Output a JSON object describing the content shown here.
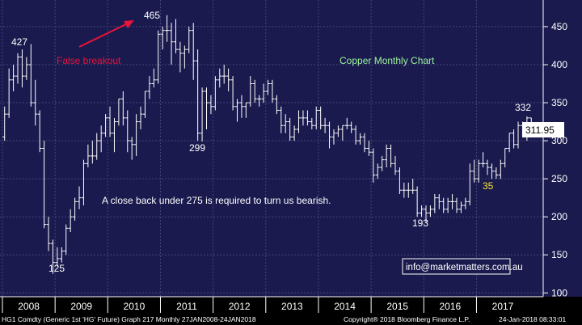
{
  "chart_data": {
    "type": "ohlc",
    "title": "Copper Monthly Chart",
    "xlabel": "",
    "ylabel": "",
    "ylim": [
      95,
      485
    ],
    "y_ticks": [
      100,
      150,
      200,
      250,
      300,
      350,
      400,
      450
    ],
    "x_ticks": [
      "2008",
      "2009",
      "2010",
      "2011",
      "2012",
      "2013",
      "2014",
      "2015",
      "2016",
      "2017"
    ],
    "grid": true,
    "last_price": "311.95",
    "series": [
      {
        "bars": [
          {
            "x": "2008-01",
            "o": 305,
            "h": 345,
            "l": 300,
            "c": 335
          },
          {
            "x": "2008-02",
            "o": 335,
            "h": 395,
            "l": 330,
            "c": 380
          },
          {
            "x": "2008-03",
            "o": 380,
            "h": 400,
            "l": 365,
            "c": 385
          },
          {
            "x": "2008-04",
            "o": 385,
            "h": 415,
            "l": 375,
            "c": 410
          },
          {
            "x": "2008-05",
            "o": 410,
            "h": 420,
            "l": 370,
            "c": 385
          },
          {
            "x": "2008-06",
            "o": 385,
            "h": 410,
            "l": 380,
            "c": 400
          },
          {
            "x": "2008-07",
            "o": 400,
            "h": 427,
            "l": 345,
            "c": 350
          },
          {
            "x": "2008-08",
            "o": 350,
            "h": 380,
            "l": 320,
            "c": 335
          },
          {
            "x": "2008-09",
            "o": 335,
            "h": 340,
            "l": 285,
            "c": 290
          },
          {
            "x": "2008-10",
            "o": 290,
            "h": 300,
            "l": 185,
            "c": 190
          },
          {
            "x": "2008-11",
            "o": 190,
            "h": 200,
            "l": 155,
            "c": 165
          },
          {
            "x": "2008-12",
            "o": 165,
            "h": 170,
            "l": 125,
            "c": 140
          },
          {
            "x": "2009-01",
            "o": 140,
            "h": 160,
            "l": 135,
            "c": 145
          },
          {
            "x": "2009-02",
            "o": 145,
            "h": 160,
            "l": 140,
            "c": 155
          },
          {
            "x": "2009-03",
            "o": 155,
            "h": 190,
            "l": 150,
            "c": 185
          },
          {
            "x": "2009-04",
            "o": 185,
            "h": 210,
            "l": 180,
            "c": 200
          },
          {
            "x": "2009-05",
            "o": 200,
            "h": 225,
            "l": 195,
            "c": 220
          },
          {
            "x": "2009-06",
            "o": 220,
            "h": 240,
            "l": 210,
            "c": 225
          },
          {
            "x": "2009-07",
            "o": 225,
            "h": 275,
            "l": 215,
            "c": 270
          },
          {
            "x": "2009-08",
            "o": 270,
            "h": 295,
            "l": 265,
            "c": 280
          },
          {
            "x": "2009-09",
            "o": 280,
            "h": 300,
            "l": 270,
            "c": 280
          },
          {
            "x": "2009-10",
            "o": 280,
            "h": 310,
            "l": 275,
            "c": 300
          },
          {
            "x": "2009-11",
            "o": 300,
            "h": 320,
            "l": 285,
            "c": 310
          },
          {
            "x": "2009-12",
            "o": 310,
            "h": 335,
            "l": 305,
            "c": 330
          },
          {
            "x": "2010-01",
            "o": 330,
            "h": 345,
            "l": 305,
            "c": 310
          },
          {
            "x": "2010-02",
            "o": 310,
            "h": 330,
            "l": 285,
            "c": 325
          },
          {
            "x": "2010-03",
            "o": 325,
            "h": 355,
            "l": 320,
            "c": 355
          },
          {
            "x": "2010-04",
            "o": 355,
            "h": 365,
            "l": 320,
            "c": 330
          },
          {
            "x": "2010-05",
            "o": 330,
            "h": 340,
            "l": 285,
            "c": 300
          },
          {
            "x": "2010-06",
            "o": 300,
            "h": 305,
            "l": 275,
            "c": 295
          },
          {
            "x": "2010-07",
            "o": 295,
            "h": 335,
            "l": 280,
            "c": 325
          },
          {
            "x": "2010-08",
            "o": 325,
            "h": 345,
            "l": 315,
            "c": 335
          },
          {
            "x": "2010-09",
            "o": 335,
            "h": 365,
            "l": 330,
            "c": 365
          },
          {
            "x": "2010-10",
            "o": 365,
            "h": 385,
            "l": 355,
            "c": 375
          },
          {
            "x": "2010-11",
            "o": 375,
            "h": 395,
            "l": 370,
            "c": 380
          },
          {
            "x": "2010-12",
            "o": 380,
            "h": 445,
            "l": 375,
            "c": 440
          },
          {
            "x": "2011-01",
            "o": 440,
            "h": 450,
            "l": 420,
            "c": 445
          },
          {
            "x": "2011-02",
            "o": 445,
            "h": 465,
            "l": 430,
            "c": 445
          },
          {
            "x": "2011-03",
            "o": 445,
            "h": 455,
            "l": 400,
            "c": 430
          },
          {
            "x": "2011-04",
            "o": 430,
            "h": 460,
            "l": 415,
            "c": 420
          },
          {
            "x": "2011-05",
            "o": 420,
            "h": 430,
            "l": 390,
            "c": 415
          },
          {
            "x": "2011-06",
            "o": 415,
            "h": 425,
            "l": 395,
            "c": 420
          },
          {
            "x": "2011-07",
            "o": 420,
            "h": 450,
            "l": 415,
            "c": 445
          },
          {
            "x": "2011-08",
            "o": 445,
            "h": 455,
            "l": 380,
            "c": 405
          },
          {
            "x": "2011-09",
            "o": 405,
            "h": 420,
            "l": 300,
            "c": 310
          },
          {
            "x": "2011-10",
            "o": 310,
            "h": 370,
            "l": 299,
            "c": 365
          },
          {
            "x": "2011-11",
            "o": 365,
            "h": 370,
            "l": 315,
            "c": 350
          },
          {
            "x": "2011-12",
            "o": 350,
            "h": 360,
            "l": 335,
            "c": 345
          },
          {
            "x": "2012-01",
            "o": 345,
            "h": 385,
            "l": 340,
            "c": 380
          },
          {
            "x": "2012-02",
            "o": 380,
            "h": 395,
            "l": 370,
            "c": 385
          },
          {
            "x": "2012-03",
            "o": 385,
            "h": 400,
            "l": 375,
            "c": 385
          },
          {
            "x": "2012-04",
            "o": 385,
            "h": 395,
            "l": 365,
            "c": 380
          },
          {
            "x": "2012-05",
            "o": 380,
            "h": 385,
            "l": 340,
            "c": 345
          },
          {
            "x": "2012-06",
            "o": 345,
            "h": 355,
            "l": 325,
            "c": 350
          },
          {
            "x": "2012-07",
            "o": 350,
            "h": 360,
            "l": 330,
            "c": 345
          },
          {
            "x": "2012-08",
            "o": 345,
            "h": 350,
            "l": 330,
            "c": 350
          },
          {
            "x": "2012-09",
            "o": 350,
            "h": 385,
            "l": 345,
            "c": 375
          },
          {
            "x": "2012-10",
            "o": 375,
            "h": 380,
            "l": 350,
            "c": 355
          },
          {
            "x": "2012-11",
            "o": 355,
            "h": 360,
            "l": 345,
            "c": 355
          },
          {
            "x": "2012-12",
            "o": 355,
            "h": 375,
            "l": 350,
            "c": 365
          },
          {
            "x": "2013-01",
            "o": 365,
            "h": 380,
            "l": 360,
            "c": 375
          },
          {
            "x": "2013-02",
            "o": 375,
            "h": 380,
            "l": 350,
            "c": 355
          },
          {
            "x": "2013-03",
            "o": 355,
            "h": 360,
            "l": 335,
            "c": 340
          },
          {
            "x": "2013-04",
            "o": 340,
            "h": 345,
            "l": 310,
            "c": 320
          },
          {
            "x": "2013-05",
            "o": 320,
            "h": 335,
            "l": 310,
            "c": 325
          },
          {
            "x": "2013-06",
            "o": 325,
            "h": 330,
            "l": 300,
            "c": 305
          },
          {
            "x": "2013-07",
            "o": 305,
            "h": 320,
            "l": 300,
            "c": 315
          },
          {
            "x": "2013-08",
            "o": 315,
            "h": 340,
            "l": 310,
            "c": 330
          },
          {
            "x": "2013-09",
            "o": 330,
            "h": 340,
            "l": 320,
            "c": 330
          },
          {
            "x": "2013-10",
            "o": 330,
            "h": 340,
            "l": 320,
            "c": 325
          },
          {
            "x": "2013-11",
            "o": 325,
            "h": 330,
            "l": 315,
            "c": 320
          },
          {
            "x": "2013-12",
            "o": 320,
            "h": 345,
            "l": 315,
            "c": 340
          },
          {
            "x": "2014-01",
            "o": 340,
            "h": 345,
            "l": 315,
            "c": 320
          },
          {
            "x": "2014-02",
            "o": 320,
            "h": 330,
            "l": 310,
            "c": 320
          },
          {
            "x": "2014-03",
            "o": 320,
            "h": 325,
            "l": 290,
            "c": 305
          },
          {
            "x": "2014-04",
            "o": 305,
            "h": 315,
            "l": 295,
            "c": 310
          },
          {
            "x": "2014-05",
            "o": 310,
            "h": 320,
            "l": 305,
            "c": 315
          },
          {
            "x": "2014-06",
            "o": 315,
            "h": 320,
            "l": 300,
            "c": 320
          },
          {
            "x": "2014-07",
            "o": 320,
            "h": 330,
            "l": 315,
            "c": 320
          },
          {
            "x": "2014-08",
            "o": 320,
            "h": 325,
            "l": 310,
            "c": 315
          },
          {
            "x": "2014-09",
            "o": 315,
            "h": 320,
            "l": 295,
            "c": 300
          },
          {
            "x": "2014-10",
            "o": 300,
            "h": 310,
            "l": 295,
            "c": 305
          },
          {
            "x": "2014-11",
            "o": 305,
            "h": 310,
            "l": 285,
            "c": 290
          },
          {
            "x": "2014-12",
            "o": 290,
            "h": 300,
            "l": 280,
            "c": 285
          },
          {
            "x": "2015-01",
            "o": 285,
            "h": 290,
            "l": 245,
            "c": 255
          },
          {
            "x": "2015-02",
            "o": 255,
            "h": 270,
            "l": 250,
            "c": 265
          },
          {
            "x": "2015-03",
            "o": 265,
            "h": 280,
            "l": 260,
            "c": 275
          },
          {
            "x": "2015-04",
            "o": 275,
            "h": 295,
            "l": 265,
            "c": 290
          },
          {
            "x": "2015-05",
            "o": 290,
            "h": 295,
            "l": 265,
            "c": 270
          },
          {
            "x": "2015-06",
            "o": 270,
            "h": 280,
            "l": 255,
            "c": 260
          },
          {
            "x": "2015-07",
            "o": 260,
            "h": 265,
            "l": 230,
            "c": 235
          },
          {
            "x": "2015-08",
            "o": 235,
            "h": 245,
            "l": 225,
            "c": 235
          },
          {
            "x": "2015-09",
            "o": 235,
            "h": 245,
            "l": 225,
            "c": 235
          },
          {
            "x": "2015-10",
            "o": 235,
            "h": 250,
            "l": 230,
            "c": 235
          },
          {
            "x": "2015-11",
            "o": 235,
            "h": 240,
            "l": 200,
            "c": 205
          },
          {
            "x": "2015-12",
            "o": 205,
            "h": 215,
            "l": 200,
            "c": 210
          },
          {
            "x": "2016-01",
            "o": 210,
            "h": 215,
            "l": 193,
            "c": 205
          },
          {
            "x": "2016-02",
            "o": 205,
            "h": 215,
            "l": 200,
            "c": 210
          },
          {
            "x": "2016-03",
            "o": 210,
            "h": 230,
            "l": 205,
            "c": 225
          },
          {
            "x": "2016-04",
            "o": 225,
            "h": 230,
            "l": 210,
            "c": 220
          },
          {
            "x": "2016-05",
            "o": 220,
            "h": 225,
            "l": 205,
            "c": 210
          },
          {
            "x": "2016-06",
            "o": 210,
            "h": 225,
            "l": 205,
            "c": 220
          },
          {
            "x": "2016-07",
            "o": 220,
            "h": 230,
            "l": 210,
            "c": 220
          },
          {
            "x": "2016-08",
            "o": 220,
            "h": 225,
            "l": 205,
            "c": 210
          },
          {
            "x": "2016-09",
            "o": 210,
            "h": 220,
            "l": 205,
            "c": 215
          },
          {
            "x": "2016-10",
            "o": 215,
            "h": 225,
            "l": 210,
            "c": 220
          },
          {
            "x": "2016-11",
            "o": 220,
            "h": 270,
            "l": 215,
            "c": 260
          },
          {
            "x": "2016-12",
            "o": 260,
            "h": 275,
            "l": 245,
            "c": 250
          },
          {
            "x": "2017-01",
            "o": 250,
            "h": 275,
            "l": 245,
            "c": 270
          },
          {
            "x": "2017-02",
            "o": 270,
            "h": 285,
            "l": 265,
            "c": 270
          },
          {
            "x": "2017-03",
            "o": 270,
            "h": 275,
            "l": 255,
            "c": 265
          },
          {
            "x": "2017-04",
            "o": 265,
            "h": 270,
            "l": 250,
            "c": 260
          },
          {
            "x": "2017-05",
            "o": 260,
            "h": 265,
            "l": 250,
            "c": 255
          },
          {
            "x": "2017-06",
            "o": 255,
            "h": 275,
            "l": 250,
            "c": 270
          },
          {
            "x": "2017-07",
            "o": 270,
            "h": 290,
            "l": 265,
            "c": 290
          },
          {
            "x": "2017-08",
            "o": 290,
            "h": 310,
            "l": 285,
            "c": 310
          },
          {
            "x": "2017-09",
            "o": 310,
            "h": 315,
            "l": 290,
            "c": 295
          },
          {
            "x": "2017-10",
            "o": 295,
            "h": 325,
            "l": 290,
            "c": 320
          },
          {
            "x": "2017-11",
            "o": 320,
            "h": 325,
            "l": 305,
            "c": 315
          },
          {
            "x": "2017-12",
            "o": 315,
            "h": 332,
            "l": 300,
            "c": 330
          },
          {
            "x": "2018-01",
            "o": 330,
            "h": 330,
            "l": 310,
            "c": 312
          }
        ]
      }
    ],
    "annotations": {
      "peak_2008": "427",
      "low_2008": "125",
      "peak_2011": "465",
      "low_2011": "299",
      "low_2016": "193",
      "high_2017": "332",
      "label_35": "35",
      "false_breakout": "False breakout",
      "bearish_note": "A close back under 275 is required to turn us bearish."
    },
    "watermark": "info@marketmatters.com.au",
    "footer": {
      "left": "HG1 Comdty (Generic 1st 'HG' Future) Graph 217  Monthly 27JAN2008-24JAN2018",
      "center": "Copyright® 2018 Bloomberg Finance L.P.",
      "right": "24-Jan-2018 08:33:01"
    },
    "colors": {
      "background": "#1a1a4e",
      "grid": "#44447a",
      "bars": "#ffffff",
      "title": "#9ef59e",
      "arrow": "#e8143a",
      "highlight_label": "#f5e52e",
      "watermark_border": "#ffffff"
    }
  }
}
